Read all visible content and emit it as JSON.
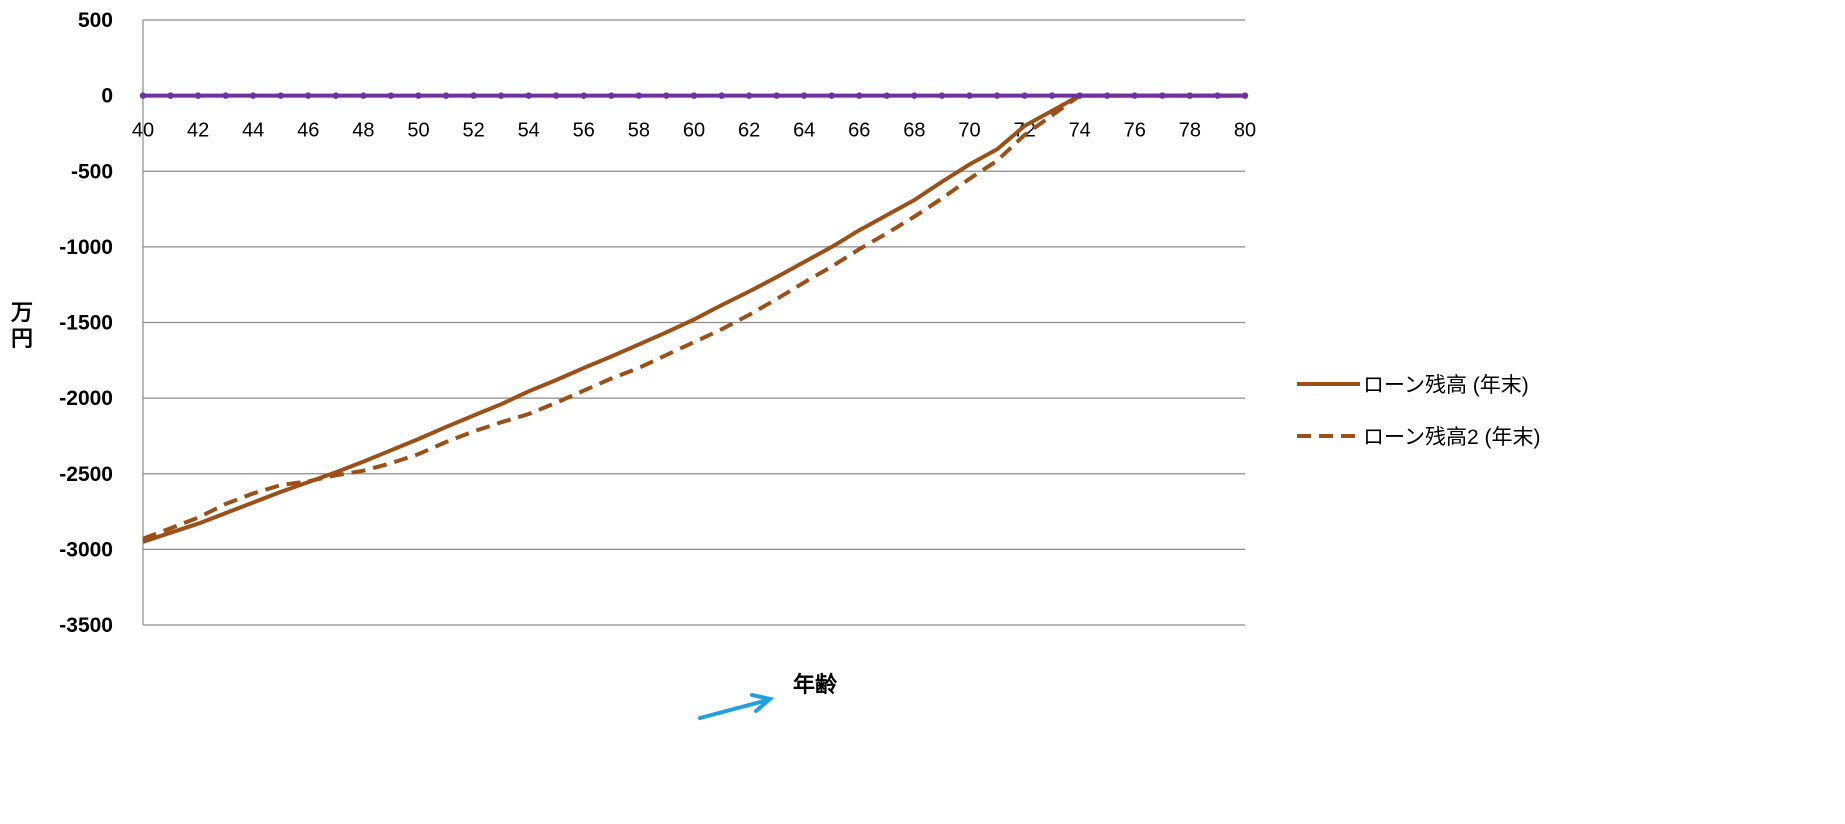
{
  "chart_data": {
    "type": "line",
    "xlabel": "年齢",
    "ylabel": [
      "万",
      "円"
    ],
    "xlim": [
      40,
      80
    ],
    "ylim": [
      -3500,
      500
    ],
    "x_ticks": [
      "40",
      "42",
      "44",
      "46",
      "48",
      "50",
      "52",
      "54",
      "56",
      "58",
      "60",
      "62",
      "64",
      "66",
      "68",
      "70",
      "72",
      "74",
      "76",
      "78",
      "80"
    ],
    "y_ticks": [
      "500",
      "0",
      "-500",
      "-1000",
      "-1500",
      "-2000",
      "-2500",
      "-3000",
      "-3500"
    ],
    "y_tick_values": [
      500,
      0,
      -500,
      -1000,
      -1500,
      -2000,
      -2500,
      -3000,
      -3500
    ],
    "grid": "horizontal",
    "legend_position": "right",
    "series": [
      {
        "name": "ローン残高 (年末)",
        "style": "solid",
        "color": "#9c4f17",
        "x": [
          40,
          41,
          42,
          43,
          44,
          45,
          46,
          47,
          48,
          49,
          50,
          51,
          52,
          53,
          54,
          55,
          56,
          57,
          58,
          59,
          60,
          61,
          62,
          63,
          64,
          65,
          66,
          67,
          68,
          69,
          70,
          71,
          72,
          73,
          74,
          75,
          76,
          77,
          78,
          79,
          80
        ],
        "y": [
          -2950,
          -2890,
          -2830,
          -2760,
          -2690,
          -2620,
          -2555,
          -2490,
          -2420,
          -2345,
          -2270,
          -2190,
          -2115,
          -2040,
          -1955,
          -1880,
          -1800,
          -1725,
          -1645,
          -1565,
          -1480,
          -1385,
          -1295,
          -1200,
          -1100,
          -1000,
          -890,
          -790,
          -690,
          -570,
          -455,
          -355,
          -200,
          -100,
          0,
          0,
          0,
          0,
          0,
          0,
          0
        ]
      },
      {
        "name": "ローン残高2 (年末)",
        "style": "dashed",
        "color": "#9c4f17",
        "x": [
          40,
          41,
          42,
          43,
          44,
          45,
          46,
          47,
          48,
          49,
          50,
          51,
          52,
          53,
          54,
          55,
          56,
          57,
          58,
          59,
          60,
          61,
          62,
          63,
          64,
          65,
          66,
          67,
          68,
          69,
          70,
          71,
          72,
          73,
          74,
          75,
          76,
          77,
          78,
          79,
          80
        ],
        "y": [
          -2930,
          -2860,
          -2790,
          -2700,
          -2630,
          -2575,
          -2550,
          -2510,
          -2480,
          -2430,
          -2370,
          -2290,
          -2220,
          -2160,
          -2105,
          -2030,
          -1950,
          -1870,
          -1800,
          -1715,
          -1630,
          -1545,
          -1450,
          -1345,
          -1235,
          -1130,
          -1015,
          -910,
          -800,
          -680,
          -550,
          -430,
          -260,
          -130,
          0,
          0,
          0,
          0,
          0,
          0,
          0
        ]
      },
      {
        "name": "",
        "style": "solid-markers",
        "color": "#7030a0",
        "x": [
          40,
          41,
          42,
          43,
          44,
          45,
          46,
          47,
          48,
          49,
          50,
          51,
          52,
          53,
          54,
          55,
          56,
          57,
          58,
          59,
          60,
          61,
          62,
          63,
          64,
          65,
          66,
          67,
          68,
          69,
          70,
          71,
          72,
          73,
          74,
          75,
          76,
          77,
          78,
          79,
          80
        ],
        "y": [
          0,
          0,
          0,
          0,
          0,
          0,
          0,
          0,
          0,
          0,
          0,
          0,
          0,
          0,
          0,
          0,
          0,
          0,
          0,
          0,
          0,
          0,
          0,
          0,
          0,
          0,
          0,
          0,
          0,
          0,
          0,
          0,
          0,
          0,
          0,
          0,
          0,
          0,
          0,
          0,
          0
        ]
      }
    ],
    "annotation_arrow_color": "#20a0e0"
  }
}
